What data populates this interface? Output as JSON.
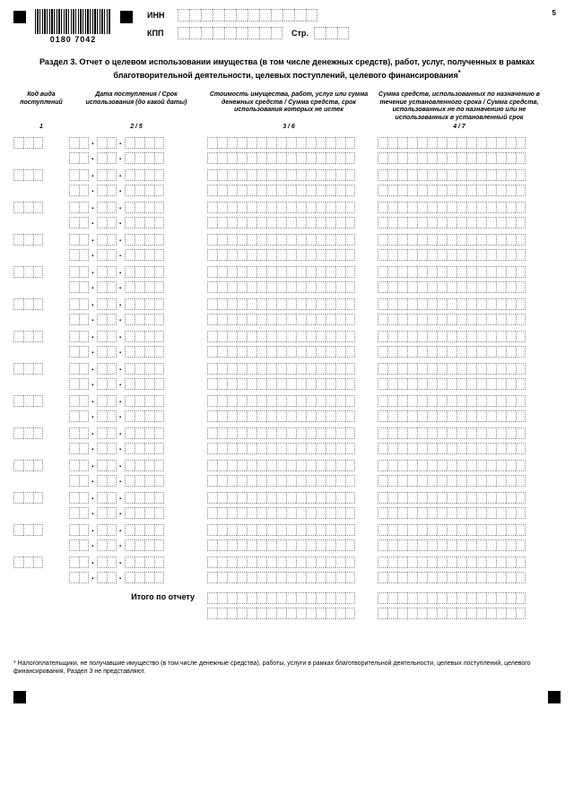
{
  "page_number": "5",
  "barcode_text": "0180 7042",
  "header": {
    "inn_label": "ИНН",
    "kpp_label": "КПП",
    "str_label": "Стр.",
    "inn_cells": 12,
    "kpp_cells": 9,
    "str_cells": 3
  },
  "section_title": "Раздел 3. Отчет о целевом использовании имущества (в том числе денежных средств), работ, услуг, полученных в рамках благотворительной деятельности, целевых поступлений, целевого финансирования",
  "columns": {
    "h1": "Код вида поступлений",
    "h2": "Дата поступления / Срок использования (до какой даты)",
    "h3": "Стоимость имущества, работ, услуг или сумма денежных средств / Сумма средств, срок использования которых не истек",
    "h4": "Сумма средств, использованных по назначению в течение установленного срока / Сумма средств, использованных не по назначению или не использованных в установленный срок",
    "n1": "1",
    "n2": "2 / 5",
    "n3": "3 / 6",
    "n4": "4 / 7"
  },
  "row_count": 14,
  "code_cells": 3,
  "date_parts": [
    2,
    2,
    4
  ],
  "amount_cells": 15,
  "totals_label": "Итого по отчету",
  "footnote": "* Налогоплательщики, не получавшие имущество (в том числе денежные средства), работы, услуги в рамках благотворительной деятельности, целевых поступлений, целевого финансирования, Раздел 3 не представляют.",
  "colors": {
    "black": "#000000",
    "cell_border": "#888888",
    "background": "#ffffff"
  }
}
